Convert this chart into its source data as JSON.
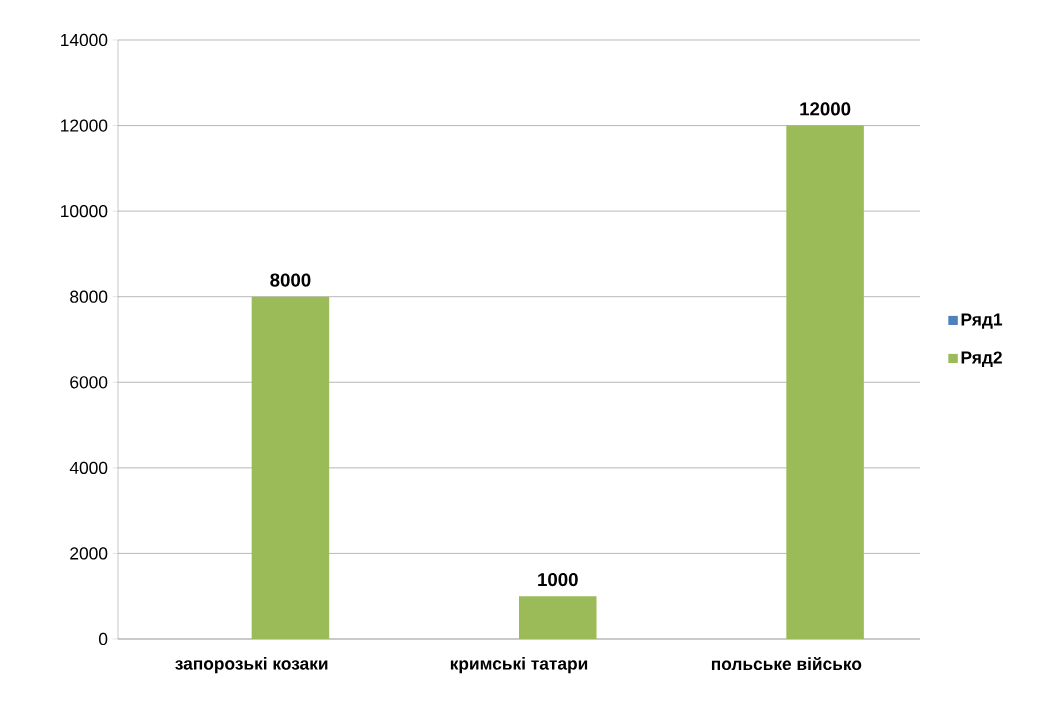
{
  "chart_data": {
    "type": "bar",
    "categories": [
      "запорозькі козаки",
      "кримські татари",
      "польське військо"
    ],
    "series": [
      {
        "name": "Ряд1",
        "color": "#4f81bd",
        "values": [
          null,
          null,
          null
        ]
      },
      {
        "name": "Ряд2",
        "color": "#9bbb59",
        "values": [
          8000,
          1000,
          12000
        ]
      }
    ],
    "ylim": [
      0,
      14000
    ],
    "yticks": [
      0,
      2000,
      4000,
      6000,
      8000,
      10000,
      12000,
      14000
    ],
    "grid": "y",
    "legend": "right",
    "data_labels": true
  }
}
